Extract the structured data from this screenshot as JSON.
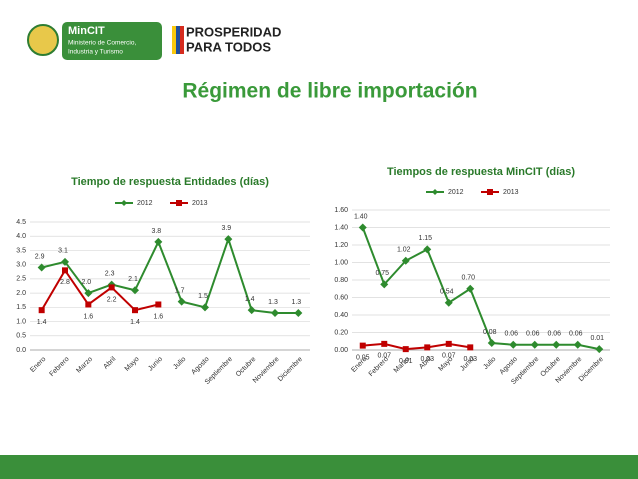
{
  "header": {
    "logo_name": "MinCIT",
    "logo_sub": [
      "Ministerio de Comercio,",
      "Industria y Turismo"
    ],
    "slogan": [
      "PROSPERIDAD",
      "PARA TODOS"
    ]
  },
  "title": "Régimen de libre importación",
  "chart_data": [
    {
      "type": "line",
      "title": "Tiempo de respuesta Entidades (días)",
      "categories": [
        "Enero",
        "Febrero",
        "Marzo",
        "Abril",
        "Mayo",
        "Junio",
        "Julio",
        "Agosto",
        "Septiembre",
        "Octubre",
        "Noviembre",
        "Diciembre"
      ],
      "series": [
        {
          "name": "2012",
          "color": "#2e8b2e",
          "marker": "diamond",
          "values": [
            2.9,
            3.1,
            2.0,
            2.3,
            2.1,
            3.8,
            1.7,
            1.5,
            3.9,
            1.4,
            1.3,
            1.3
          ],
          "value_labels": [
            "2.9",
            "3.1",
            "2.0",
            "2.3",
            "2.1",
            "3.8",
            "1.7",
            "1.5",
            "3.9",
            "1.4",
            "1.3",
            "1.3"
          ]
        },
        {
          "name": "2013",
          "color": "#c00000",
          "marker": "square",
          "values": [
            1.4,
            2.8,
            1.6,
            2.2,
            1.4,
            1.6,
            null,
            null,
            null,
            null,
            null,
            null
          ],
          "value_labels": [
            "1.4",
            "2.8",
            "1.6",
            "2.2",
            "1.4",
            "1.6",
            null,
            null,
            null,
            null,
            null,
            null
          ]
        }
      ],
      "ylim": [
        0,
        4.5
      ],
      "yticks": [
        {
          "value": 0,
          "label": "0.0"
        },
        {
          "value": 0.5,
          "label": "0.5"
        },
        {
          "value": 1,
          "label": "1.0"
        },
        {
          "value": 1.5,
          "label": "1.5"
        },
        {
          "value": 2,
          "label": "2.0"
        },
        {
          "value": 2.5,
          "label": "2.5"
        },
        {
          "value": 3,
          "label": "3.0"
        },
        {
          "value": 3.5,
          "label": "3.5"
        },
        {
          "value": 4,
          "label": "4.0"
        },
        {
          "value": 4.5,
          "label": "4.5"
        }
      ],
      "grid": true,
      "legend": "top"
    },
    {
      "type": "line",
      "title": "Tiempos de respuesta MinCIT (días)",
      "categories": [
        "Enero",
        "Febrero",
        "Marzo",
        "Abril",
        "Mayo",
        "Junio",
        "Julio",
        "Agosto",
        "Septiembre",
        "Octubre",
        "Noviembre",
        "Diciembre"
      ],
      "series": [
        {
          "name": "2012",
          "color": "#2e8b2e",
          "marker": "diamond",
          "values": [
            1.4,
            0.75,
            1.02,
            1.15,
            0.54,
            0.7,
            0.08,
            0.06,
            0.06,
            0.06,
            0.06,
            0.01
          ],
          "value_labels": [
            "1.40",
            "0.75",
            "1.02",
            "1.15",
            "0.54",
            "0.70",
            "0.08",
            "0.06",
            "0.06",
            "0.06",
            "0.06",
            "0.01"
          ]
        },
        {
          "name": "2013",
          "color": "#c00000",
          "marker": "square",
          "values": [
            0.05,
            0.07,
            0.01,
            0.03,
            0.07,
            0.03,
            null,
            null,
            null,
            null,
            null,
            null
          ],
          "value_labels": [
            "0.05",
            "0.07",
            "0.01",
            "0.03",
            "0.07",
            "0.03",
            null,
            null,
            null,
            null,
            null,
            null
          ]
        }
      ],
      "ylim": [
        0,
        1.6
      ],
      "yticks": [
        {
          "value": 0,
          "label": "0.00"
        },
        {
          "value": 0.2,
          "label": "0.20"
        },
        {
          "value": 0.4,
          "label": "0.40"
        },
        {
          "value": 0.6,
          "label": "0.60"
        },
        {
          "value": 0.8,
          "label": "0.80"
        },
        {
          "value": 1,
          "label": "1.00"
        },
        {
          "value": 1.2,
          "label": "1.20"
        },
        {
          "value": 1.4,
          "label": "1.40"
        },
        {
          "value": 1.6,
          "label": "1.60"
        }
      ],
      "grid": true,
      "legend": "top"
    }
  ]
}
